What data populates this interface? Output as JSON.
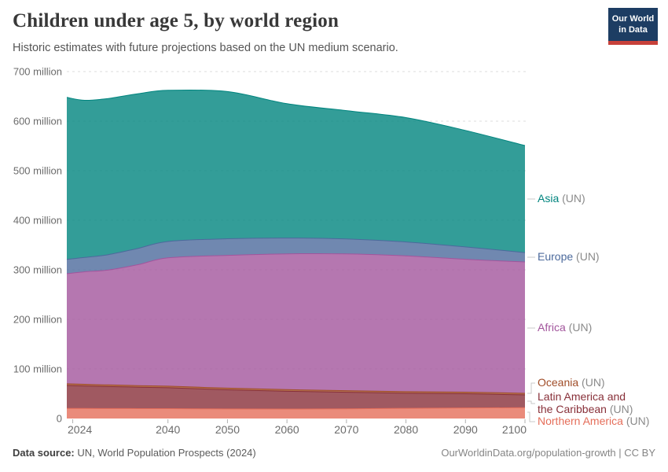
{
  "header": {
    "title": "Children under age 5, by world region",
    "subtitle": "Historic estimates with future projections based on the UN medium scenario."
  },
  "logo": {
    "lines": [
      "Our World",
      "in Data"
    ]
  },
  "colors": {
    "logo_bg": "#1D3D63",
    "logo_accent": "#C7413A",
    "grid": "#dedede",
    "tick": "#b0b0b0",
    "axis_text": "#6b6b6b",
    "legend_suffix_gray": "#8a8a8a",
    "connector": "#c9c9c9"
  },
  "chart_data": {
    "type": "area",
    "stacked": true,
    "title": "Children under age 5, by world region",
    "unit": "million",
    "x": [
      2023,
      2026,
      2030,
      2035,
      2040,
      2050,
      2060,
      2070,
      2080,
      2090,
      2100
    ],
    "xticks": [
      2024,
      2040,
      2050,
      2060,
      2070,
      2080,
      2090,
      2100
    ],
    "ylim": [
      0,
      700
    ],
    "ytick_interval": 100,
    "ytick_labels": [
      "0",
      "100 million",
      "200 million",
      "300 million",
      "400 million",
      "500 million",
      "600 million",
      "700 million"
    ],
    "grid": true,
    "legend_position": "right",
    "fill_opacity": 0.8,
    "series_bottom_to_top": [
      {
        "name": "Northern America",
        "color": "#E56E5A",
        "values": [
          20.2,
          20.1,
          20.0,
          19.9,
          19.8,
          19.2,
          19.0,
          19.6,
          20.4,
          21.2,
          21.7
        ]
      },
      {
        "name": "Latin America and the Caribbean",
        "color": "#883039",
        "values": [
          46.5,
          45.6,
          44.5,
          43.3,
          42.2,
          38.8,
          36.0,
          33.4,
          30.6,
          28.8,
          25.9
        ]
      },
      {
        "name": "Oceania",
        "color": "#A04D28",
        "values": [
          3.3,
          3.3,
          3.2,
          3.2,
          3.2,
          3.2,
          3.2,
          3.2,
          3.2,
          3.2,
          3.2
        ]
      },
      {
        "name": "Africa",
        "color": "#A2559C",
        "values": [
          222,
          227,
          232,
          244,
          259,
          268,
          274,
          276,
          274,
          268,
          265
        ]
      },
      {
        "name": "Europe",
        "color": "#4C6A9C",
        "values": [
          29,
          29,
          31,
          33,
          33,
          33.5,
          32,
          30,
          28,
          25,
          19
        ]
      },
      {
        "name": "Asia",
        "color": "#00847E",
        "values": [
          327,
          317,
          315,
          312,
          305,
          297,
          271,
          259,
          251,
          235,
          216
        ]
      }
    ]
  },
  "legend": {
    "suffix": "(UN)",
    "entries": [
      {
        "series": "Asia",
        "label_lines": [
          "Asia"
        ]
      },
      {
        "series": "Europe",
        "label_lines": [
          "Europe"
        ]
      },
      {
        "series": "Africa",
        "label_lines": [
          "Africa"
        ]
      },
      {
        "series": "Oceania",
        "label_lines": [
          "Oceania"
        ]
      },
      {
        "series": "Latin America and the Caribbean",
        "label_lines": [
          "Latin America and",
          "the Caribbean"
        ]
      },
      {
        "series": "Northern America",
        "label_lines": [
          "Northern America"
        ]
      }
    ]
  },
  "footer": {
    "datasource_label": "Data source:",
    "datasource_value": " UN, World Population Prospects (2024)",
    "credit": "OurWorldinData.org/population-growth | CC BY"
  }
}
